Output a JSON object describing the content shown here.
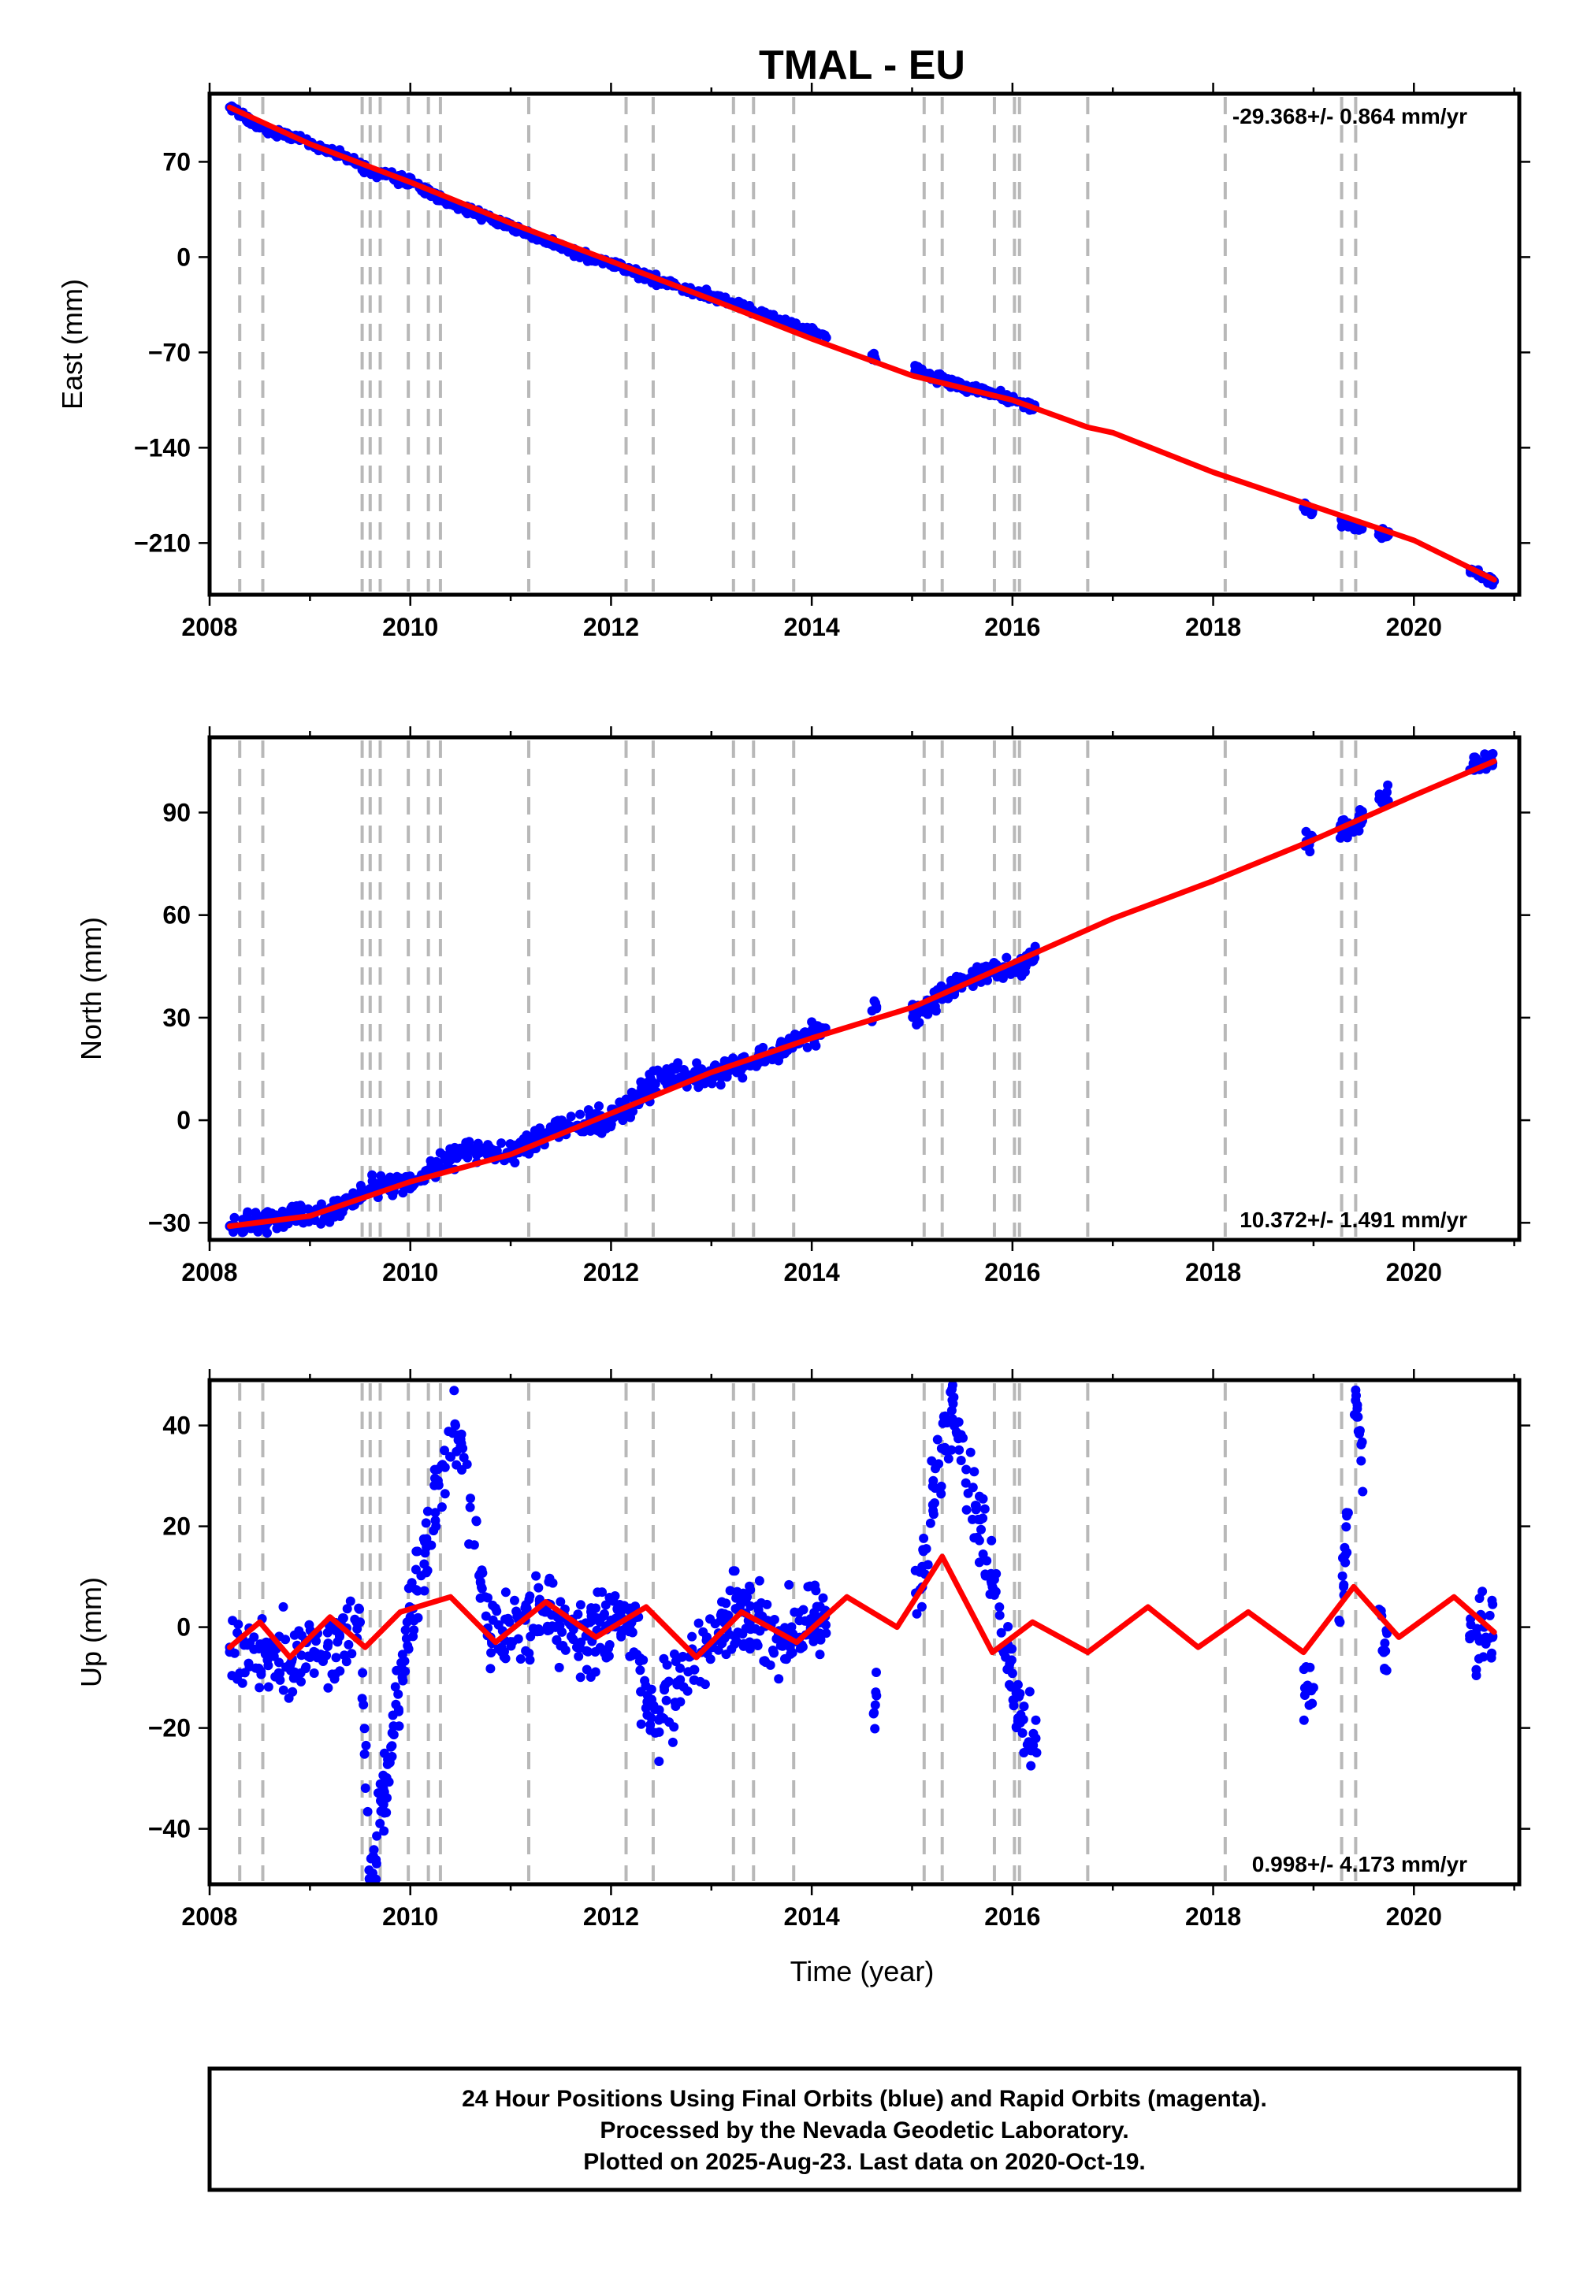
{
  "title": "TMAL - EU",
  "xlabel": "Time (year)",
  "footer": [
    "24 Hour Positions Using Final Orbits (blue) and Rapid Orbits (magenta).",
    "Processed by the Nevada Geodetic Laboratory.",
    "Plotted on 2025-Aug-23. Last data on 2020-Oct-19."
  ],
  "colors": {
    "data_points": "#0000ff",
    "model_fit": "#ff0000",
    "event_lines": "#b8b8b8"
  },
  "chart_data": [
    {
      "type": "scatter",
      "component": "east",
      "ylabel": "East (mm)",
      "rate_label": "-29.368+/- 0.864 mm/yr",
      "rate_position": "top-right",
      "xlim": [
        2008.0,
        2021.05
      ],
      "ylim": [
        -248,
        120
      ],
      "xticks": [
        2008,
        2010,
        2012,
        2014,
        2016,
        2018,
        2020
      ],
      "yticks": [
        -210,
        -140,
        -70,
        0,
        70
      ],
      "event_lines_x": [
        2008.3,
        2008.53,
        2009.52,
        2009.6,
        2009.7,
        2009.98,
        2010.18,
        2010.3,
        2011.18,
        2012.15,
        2012.42,
        2013.22,
        2013.42,
        2013.82,
        2015.12,
        2015.3,
        2015.82,
        2016.02,
        2016.07,
        2016.75,
        2018.12,
        2019.28,
        2019.42
      ],
      "data_segments": [
        [
          2008.2,
          2014.15
        ],
        [
          2014.6,
          2014.65
        ],
        [
          2015.0,
          2016.25
        ],
        [
          2018.9,
          2019.0
        ],
        [
          2019.25,
          2019.5
        ],
        [
          2019.65,
          2019.75
        ],
        [
          2020.55,
          2020.8
        ]
      ],
      "series": [
        {
          "name": "Final Orbits (blue)",
          "type": "scatter",
          "x": [
            2008.2,
            2008.5,
            2008.8,
            2009.0,
            2009.4,
            2009.6,
            2010.0,
            2010.4,
            2010.8,
            2011.2,
            2011.6,
            2012.0,
            2012.3,
            2012.8,
            2013.2,
            2013.6,
            2014.0,
            2014.6,
            2015.1,
            2015.4,
            2015.8,
            2016.2,
            2018.9,
            2019.35,
            2019.7,
            2020.6,
            2020.8
          ],
          "y": [
            110,
            95,
            89,
            84,
            72,
            63,
            55,
            40,
            28,
            16,
            5,
            -5,
            -13,
            -25,
            -33,
            -45,
            -55,
            -72,
            -85,
            -93,
            -100,
            -110,
            -184,
            -197,
            -203,
            -232,
            -238
          ]
        },
        {
          "name": "Model fit",
          "type": "line",
          "x": [
            2008.2,
            2009.0,
            2010.0,
            2011.0,
            2012.0,
            2013.0,
            2014.0,
            2015.0,
            2016.0,
            2016.75,
            2017.0,
            2018.0,
            2019.0,
            2020.0,
            2020.8
          ],
          "y": [
            110,
            83,
            55,
            25,
            -3,
            -31,
            -60,
            -87,
            -105,
            -125,
            -129,
            -158,
            -183,
            -208,
            -237
          ]
        }
      ]
    },
    {
      "type": "scatter",
      "component": "north",
      "ylabel": "North (mm)",
      "rate_label": "10.372+/- 1.491 mm/yr",
      "rate_position": "bottom-right",
      "xlim": [
        2008.0,
        2021.05
      ],
      "ylim": [
        -35,
        112
      ],
      "xticks": [
        2008,
        2010,
        2012,
        2014,
        2016,
        2018,
        2020
      ],
      "yticks": [
        -30,
        0,
        30,
        60,
        90
      ],
      "event_lines_x": [
        2008.3,
        2008.53,
        2009.52,
        2009.6,
        2009.7,
        2009.98,
        2010.18,
        2010.3,
        2011.18,
        2012.15,
        2012.42,
        2013.22,
        2013.42,
        2013.82,
        2015.12,
        2015.3,
        2015.82,
        2016.02,
        2016.07,
        2016.75,
        2018.12,
        2019.28,
        2019.42
      ],
      "data_segments": [
        [
          2008.2,
          2014.15
        ],
        [
          2014.6,
          2014.65
        ],
        [
          2015.0,
          2016.25
        ],
        [
          2018.9,
          2019.0
        ],
        [
          2019.25,
          2019.5
        ],
        [
          2019.65,
          2019.75
        ],
        [
          2020.55,
          2020.8
        ]
      ],
      "series": [
        {
          "name": "Final Orbits (blue)",
          "type": "scatter",
          "x": [
            2008.2,
            2008.5,
            2008.8,
            2009.2,
            2009.6,
            2010.0,
            2010.6,
            2011.0,
            2011.5,
            2012.0,
            2012.5,
            2013.0,
            2013.5,
            2013.9,
            2014.6,
            2015.1,
            2015.5,
            2016.1,
            2018.95,
            2019.4,
            2019.7,
            2020.7
          ],
          "y": [
            -31,
            -30,
            -28,
            -27,
            -20,
            -18,
            -8,
            -10,
            -2,
            0,
            13,
            13,
            18,
            24,
            32,
            32,
            41,
            46,
            82,
            86,
            94,
            105
          ]
        },
        {
          "name": "Model fit",
          "type": "line",
          "x": [
            2008.2,
            2009.0,
            2010.0,
            2011.0,
            2012.0,
            2013.0,
            2014.0,
            2015.0,
            2016.0,
            2017.0,
            2018.0,
            2019.0,
            2020.0,
            2020.8
          ],
          "y": [
            -31,
            -28,
            -18,
            -10,
            2,
            14,
            24,
            33,
            46,
            59,
            70,
            82,
            95,
            105
          ]
        }
      ]
    },
    {
      "type": "scatter",
      "component": "up",
      "ylabel": "Up (mm)",
      "rate_label": "0.998+/- 4.173 mm/yr",
      "rate_position": "bottom-right",
      "xlim": [
        2008.0,
        2021.05
      ],
      "ylim": [
        -51,
        49
      ],
      "xticks": [
        2008,
        2010,
        2012,
        2014,
        2016,
        2018,
        2020
      ],
      "yticks": [
        -40,
        -20,
        0,
        20,
        40
      ],
      "event_lines_x": [
        2008.3,
        2008.53,
        2009.52,
        2009.6,
        2009.7,
        2009.98,
        2010.18,
        2010.3,
        2011.18,
        2012.15,
        2012.42,
        2013.22,
        2013.42,
        2013.82,
        2015.12,
        2015.3,
        2015.82,
        2016.02,
        2016.07,
        2016.75,
        2018.12,
        2019.28,
        2019.42
      ],
      "data_segments": [
        [
          2008.2,
          2014.15
        ],
        [
          2014.6,
          2014.65
        ],
        [
          2015.0,
          2016.25
        ],
        [
          2018.9,
          2019.0
        ],
        [
          2019.25,
          2019.5
        ],
        [
          2019.65,
          2019.75
        ],
        [
          2020.55,
          2020.8
        ]
      ],
      "series": [
        {
          "name": "Final Orbits (blue)",
          "type": "scatter",
          "x": [
            2008.2,
            2008.6,
            2009.0,
            2009.5,
            2009.6,
            2010.0,
            2010.45,
            2010.8,
            2011.3,
            2011.7,
            2012.2,
            2012.4,
            2012.9,
            2013.3,
            2013.8,
            2014.1,
            2014.62,
            2015.1,
            2015.4,
            2015.8,
            2016.1,
            2019.0,
            2019.3,
            2019.42,
            2019.7,
            2020.7
          ],
          "y": [
            -4,
            -5,
            -6,
            1,
            -50,
            2,
            40,
            -2,
            4,
            -3,
            2,
            -18,
            -5,
            3,
            -3,
            2,
            -17,
            12,
            45,
            8,
            -21,
            -12,
            8,
            47,
            -5,
            0
          ]
        },
        {
          "name": "Model fit",
          "type": "line",
          "x": [
            2008.2,
            2008.5,
            2008.8,
            2009.2,
            2009.55,
            2009.9,
            2010.4,
            2010.85,
            2011.35,
            2011.85,
            2012.35,
            2012.85,
            2013.3,
            2013.85,
            2014.35,
            2014.85,
            2015.3,
            2015.8,
            2016.2,
            2016.75,
            2017.35,
            2017.85,
            2018.35,
            2018.9,
            2019.4,
            2019.85,
            2020.4,
            2020.8
          ],
          "y": [
            -4,
            1,
            -6,
            2,
            -4,
            3,
            6,
            -3,
            5,
            -2,
            4,
            -6,
            3,
            -3,
            6,
            0,
            14,
            -5,
            1,
            -5,
            4,
            -4,
            3,
            -5,
            8,
            -2,
            6,
            -1
          ]
        }
      ]
    }
  ]
}
